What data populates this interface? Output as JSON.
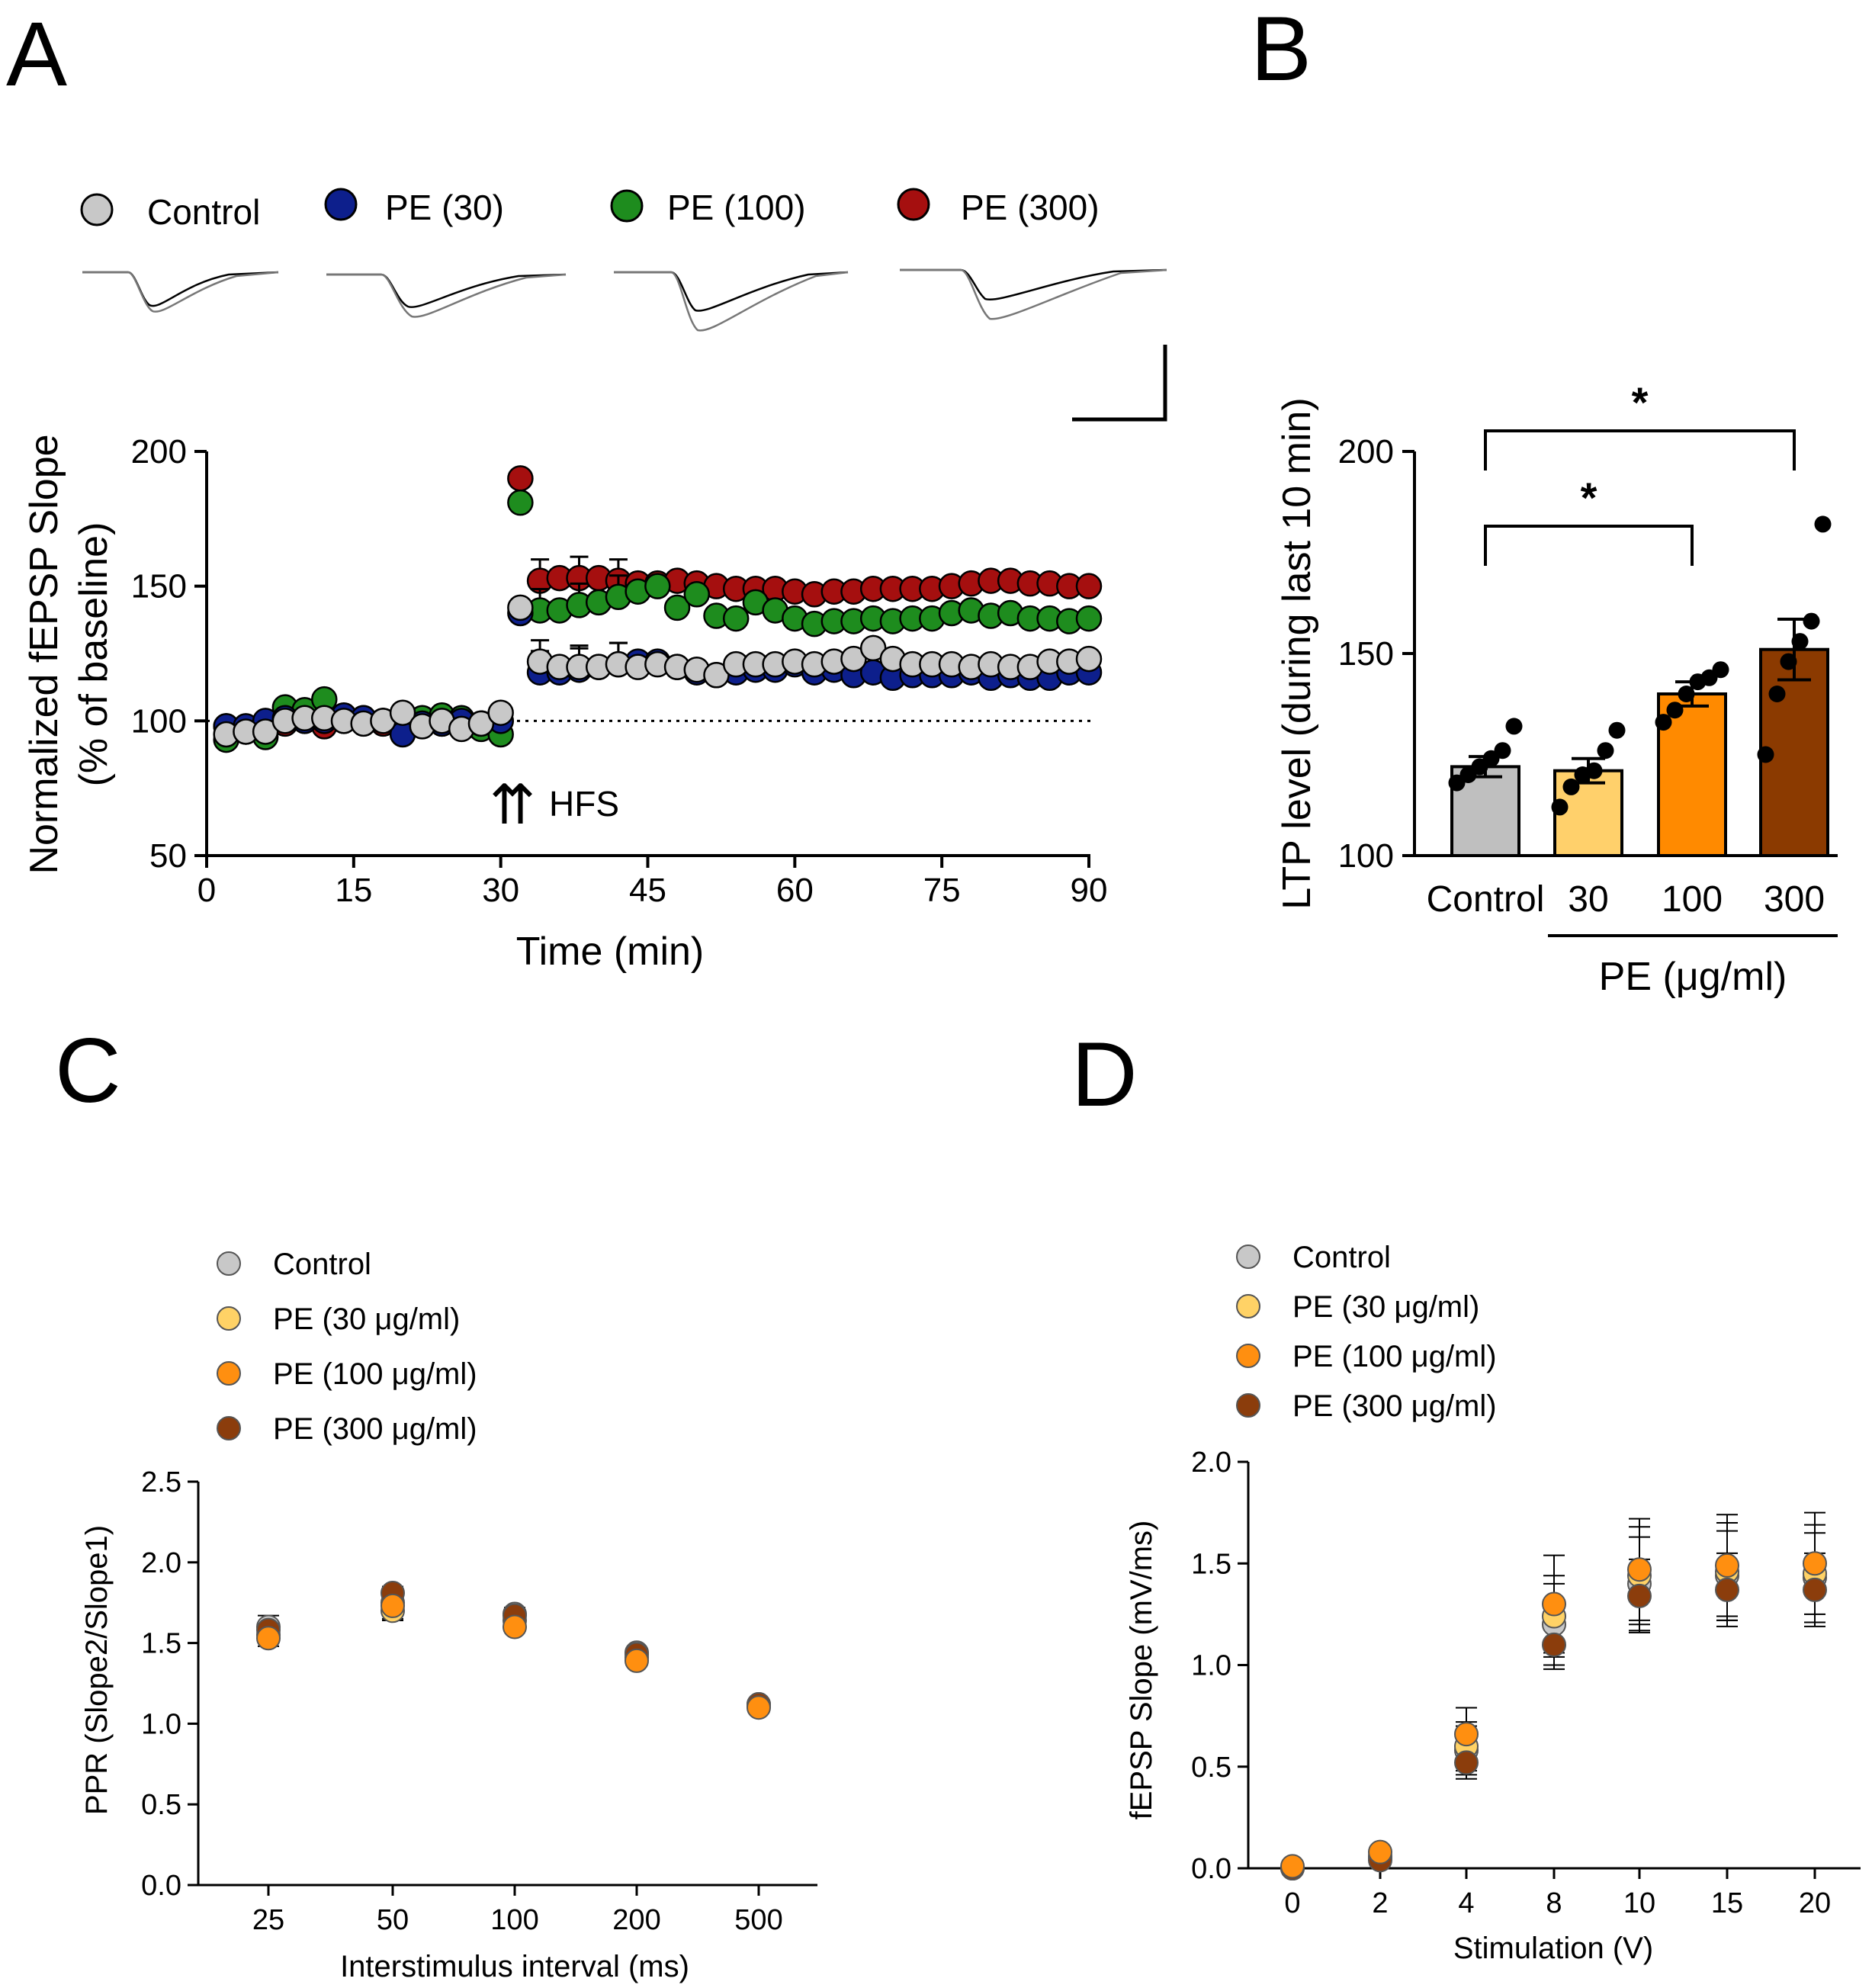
{
  "panels": {
    "A": "A",
    "B": "B",
    "C": "C",
    "D": "D"
  },
  "colors": {
    "control_A": "#c8c8c8",
    "pe30_A": "#0d1f8c",
    "pe100_A": "#1e8c1e",
    "pe300_A": "#a50f0f",
    "control_bar": "#bfbfbf",
    "pe30_bar": "#ffd06b",
    "pe100_bar": "#ff8a00",
    "pe300_bar": "#8b3a00",
    "control_CD": "#c8c8c8",
    "pe30_CD": "#ffd266",
    "pe100_CD": "#ff8f10",
    "pe300_CD": "#8b3d0c"
  },
  "chart_data": [
    {
      "id": "A",
      "type": "scatter",
      "xlabel": "Time (min)",
      "ylabel_line1": "Normalized fEPSP Slope",
      "ylabel_line2": "(% of baseline)",
      "xlim": [
        0,
        90
      ],
      "ylim": [
        50,
        200
      ],
      "xticks": [
        "0",
        "15",
        "30",
        "45",
        "60",
        "75",
        "90"
      ],
      "yticks": [
        "50",
        "100",
        "150",
        "200"
      ],
      "reference_line": 100,
      "hfs_label": "HFS",
      "hfs_arrows": "⇈",
      "hfs_time": 31,
      "legend": [
        "Control",
        "PE (30)",
        "PE (100)",
        "PE (300)"
      ],
      "x": [
        2,
        4,
        6,
        8,
        10,
        12,
        14,
        16,
        18,
        20,
        22,
        24,
        26,
        28,
        30,
        32,
        34,
        36,
        38,
        40,
        42,
        44,
        46,
        48,
        50,
        52,
        54,
        56,
        58,
        60,
        62,
        64,
        66,
        68,
        70,
        72,
        74,
        76,
        78,
        80,
        82,
        84,
        86,
        88,
        90
      ],
      "series": [
        {
          "name": "PE (300)",
          "values": [
            98,
            96,
            97,
            99,
            100,
            98,
            101,
            100,
            99,
            101,
            100,
            99,
            98,
            99,
            100,
            190,
            152,
            153,
            153,
            153,
            152,
            151,
            151,
            152,
            151,
            150,
            149,
            149,
            149,
            148,
            147,
            148,
            148,
            149,
            149,
            149,
            149,
            150,
            151,
            152,
            152,
            151,
            151,
            150,
            150
          ]
        },
        {
          "name": "PE (100)",
          "values": [
            93,
            97,
            94,
            105,
            104,
            108,
            100,
            101,
            100,
            98,
            101,
            102,
            101,
            97,
            95,
            181,
            141,
            141,
            143,
            144,
            146,
            148,
            150,
            142,
            147,
            139,
            138,
            144,
            141,
            138,
            136,
            137,
            137,
            138,
            137,
            138,
            138,
            140,
            141,
            139,
            140,
            138,
            138,
            137,
            138
          ]
        },
        {
          "name": "PE (30)",
          "values": [
            98,
            98,
            100,
            101,
            100,
            100,
            102,
            101,
            100,
            95,
            99,
            99,
            100,
            99,
            100,
            140,
            118,
            118,
            119,
            120,
            121,
            122,
            122,
            120,
            118,
            117,
            118,
            119,
            119,
            121,
            118,
            119,
            117,
            118,
            116,
            117,
            117,
            117,
            118,
            116,
            117,
            116,
            116,
            118,
            118
          ]
        },
        {
          "name": "Control",
          "values": [
            95,
            96,
            96,
            100,
            101,
            101,
            100,
            99,
            100,
            103,
            98,
            100,
            97,
            99,
            103,
            142,
            122,
            120,
            120,
            120,
            121,
            120,
            121,
            120,
            119,
            117,
            121,
            121,
            121,
            122,
            121,
            122,
            123,
            127,
            123,
            121,
            121,
            121,
            120,
            121,
            120,
            120,
            122,
            122,
            123
          ]
        }
      ]
    },
    {
      "id": "B",
      "type": "bar",
      "ylabel": "LTP level (during last 10 min)",
      "ylim": [
        100,
        200
      ],
      "yticks": [
        "100",
        "150",
        "200"
      ],
      "categories": [
        "Control",
        "30",
        "100",
        "300"
      ],
      "values": [
        122,
        121,
        140,
        151
      ],
      "sem": [
        2.5,
        3,
        3,
        7.5
      ],
      "points": [
        [
          118,
          120,
          122,
          124,
          126,
          132
        ],
        [
          112,
          117,
          120,
          121,
          126,
          131
        ],
        [
          133,
          136,
          140,
          143,
          144,
          146
        ],
        [
          125,
          140,
          148,
          153,
          158,
          182
        ]
      ],
      "group_label": "PE (μg/ml)",
      "significance": [
        {
          "from": "Control",
          "to": "100",
          "label": "*"
        },
        {
          "from": "Control",
          "to": "300",
          "label": "*"
        }
      ]
    },
    {
      "id": "C",
      "type": "scatter",
      "xlabel": "Interstimulus interval (ms)",
      "ylabel": "PPR  (Slope2/Slope1)",
      "ylim": [
        0,
        2.5
      ],
      "yticks": [
        "0.0",
        "0.5",
        "1.0",
        "1.5",
        "2.0",
        "2.5"
      ],
      "categories": [
        "25",
        "50",
        "100",
        "200",
        "500"
      ],
      "legend": [
        "Control",
        "PE (30 μg/ml)",
        "PE (100 μg/ml)",
        "PE (300 μg/ml)"
      ],
      "series": [
        {
          "name": "Control",
          "values": [
            1.6,
            1.75,
            1.68,
            1.44,
            1.12
          ],
          "err": [
            0.07,
            0.1,
            0.04,
            0.03,
            0.02
          ]
        },
        {
          "name": "PE (30 μg/ml)",
          "values": [
            1.55,
            1.7,
            1.64,
            1.41,
            1.11
          ],
          "err": [
            0.05,
            0.06,
            0.04,
            0.03,
            0.02
          ]
        },
        {
          "name": "PE (300 μg/ml)",
          "values": [
            1.58,
            1.81,
            1.67,
            1.43,
            1.12
          ],
          "err": [
            0.05,
            0.04,
            0.03,
            0.02,
            0.02
          ]
        },
        {
          "name": "PE (100 μg/ml)",
          "values": [
            1.53,
            1.73,
            1.6,
            1.39,
            1.1
          ],
          "err": [
            0.05,
            0.05,
            0.03,
            0.02,
            0.02
          ]
        }
      ]
    },
    {
      "id": "D",
      "type": "scatter",
      "xlabel": "Stimulation (V)",
      "ylabel": "fEPSP Slope (mV/ms)",
      "ylim": [
        0,
        2.0
      ],
      "yticks": [
        "0.0",
        "0.5",
        "1.0",
        "1.5",
        "2.0"
      ],
      "categories": [
        "0",
        "2",
        "4",
        "8",
        "10",
        "15",
        "20"
      ],
      "legend": [
        "Control",
        "PE (30 μg/ml)",
        "PE (100 μg/ml)",
        "PE (300 μg/ml)"
      ],
      "series": [
        {
          "name": "Control",
          "values": [
            0.0,
            0.05,
            0.58,
            1.2,
            1.4,
            1.44,
            1.43
          ],
          "err": [
            0.01,
            0.02,
            0.12,
            0.2,
            0.23,
            0.22,
            0.22
          ]
        },
        {
          "name": "PE (30 μg/ml)",
          "values": [
            0.0,
            0.06,
            0.6,
            1.24,
            1.44,
            1.46,
            1.45
          ],
          "err": [
            0.01,
            0.02,
            0.12,
            0.2,
            0.24,
            0.24,
            0.24
          ]
        },
        {
          "name": "PE (300 μg/ml)",
          "values": [
            0.0,
            0.04,
            0.52,
            1.1,
            1.34,
            1.37,
            1.37
          ],
          "err": [
            0.01,
            0.02,
            0.08,
            0.12,
            0.18,
            0.18,
            0.18
          ]
        },
        {
          "name": "PE (100 μg/ml)",
          "values": [
            0.01,
            0.08,
            0.66,
            1.3,
            1.47,
            1.49,
            1.5
          ],
          "err": [
            0.01,
            0.02,
            0.13,
            0.24,
            0.25,
            0.25,
            0.25
          ]
        }
      ]
    }
  ]
}
